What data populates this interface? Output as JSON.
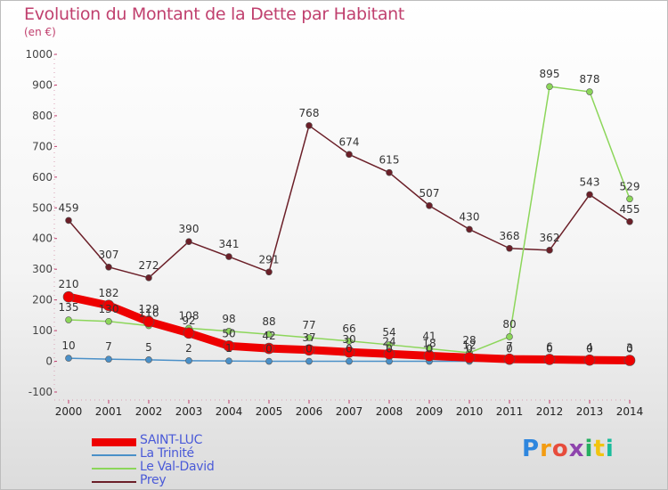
{
  "title": "Evolution du Montant de la Dette par Habitant",
  "subtitle": "(en €)",
  "logo": {
    "text": "Proxiti",
    "colors": [
      "#2e86de",
      "#f39c12",
      "#e74c3c",
      "#8e44ad",
      "#27ae60",
      "#f1c40f",
      "#1abc9c"
    ]
  },
  "chart_data": {
    "type": "line",
    "x": [
      "2000",
      "2001",
      "2002",
      "2003",
      "2004",
      "2005",
      "2006",
      "2007",
      "2008",
      "2009",
      "2010",
      "2011",
      "2012",
      "2013",
      "2014"
    ],
    "ylim": [
      -100,
      1000
    ],
    "yticks": [
      -100,
      0,
      100,
      200,
      300,
      400,
      500,
      600,
      700,
      800,
      900,
      1000
    ],
    "grid": false,
    "legend_position": "bottom-left",
    "series": [
      {
        "name": "Prey",
        "color": "#6b1f28",
        "values": [
          459,
          307,
          272,
          390,
          341,
          291,
          768,
          674,
          615,
          507,
          430,
          368,
          362,
          543,
          455
        ]
      },
      {
        "name": "Le Val-David",
        "color": "#8cd65a",
        "values": [
          135,
          130,
          116,
          108,
          98,
          88,
          77,
          66,
          54,
          41,
          28,
          80,
          895,
          878,
          529
        ]
      },
      {
        "name": "La Trinité",
        "color": "#4a90c8",
        "values": [
          10,
          7,
          5,
          2,
          1,
          0,
          0,
          0,
          0,
          0,
          0,
          0,
          0,
          0,
          0
        ]
      },
      {
        "name": "SAINT-LUC",
        "color": "#ee0000",
        "values": [
          210,
          182,
          129,
          92,
          50,
          42,
          37,
          30,
          24,
          18,
          12,
          7,
          6,
          4,
          3
        ]
      }
    ]
  }
}
